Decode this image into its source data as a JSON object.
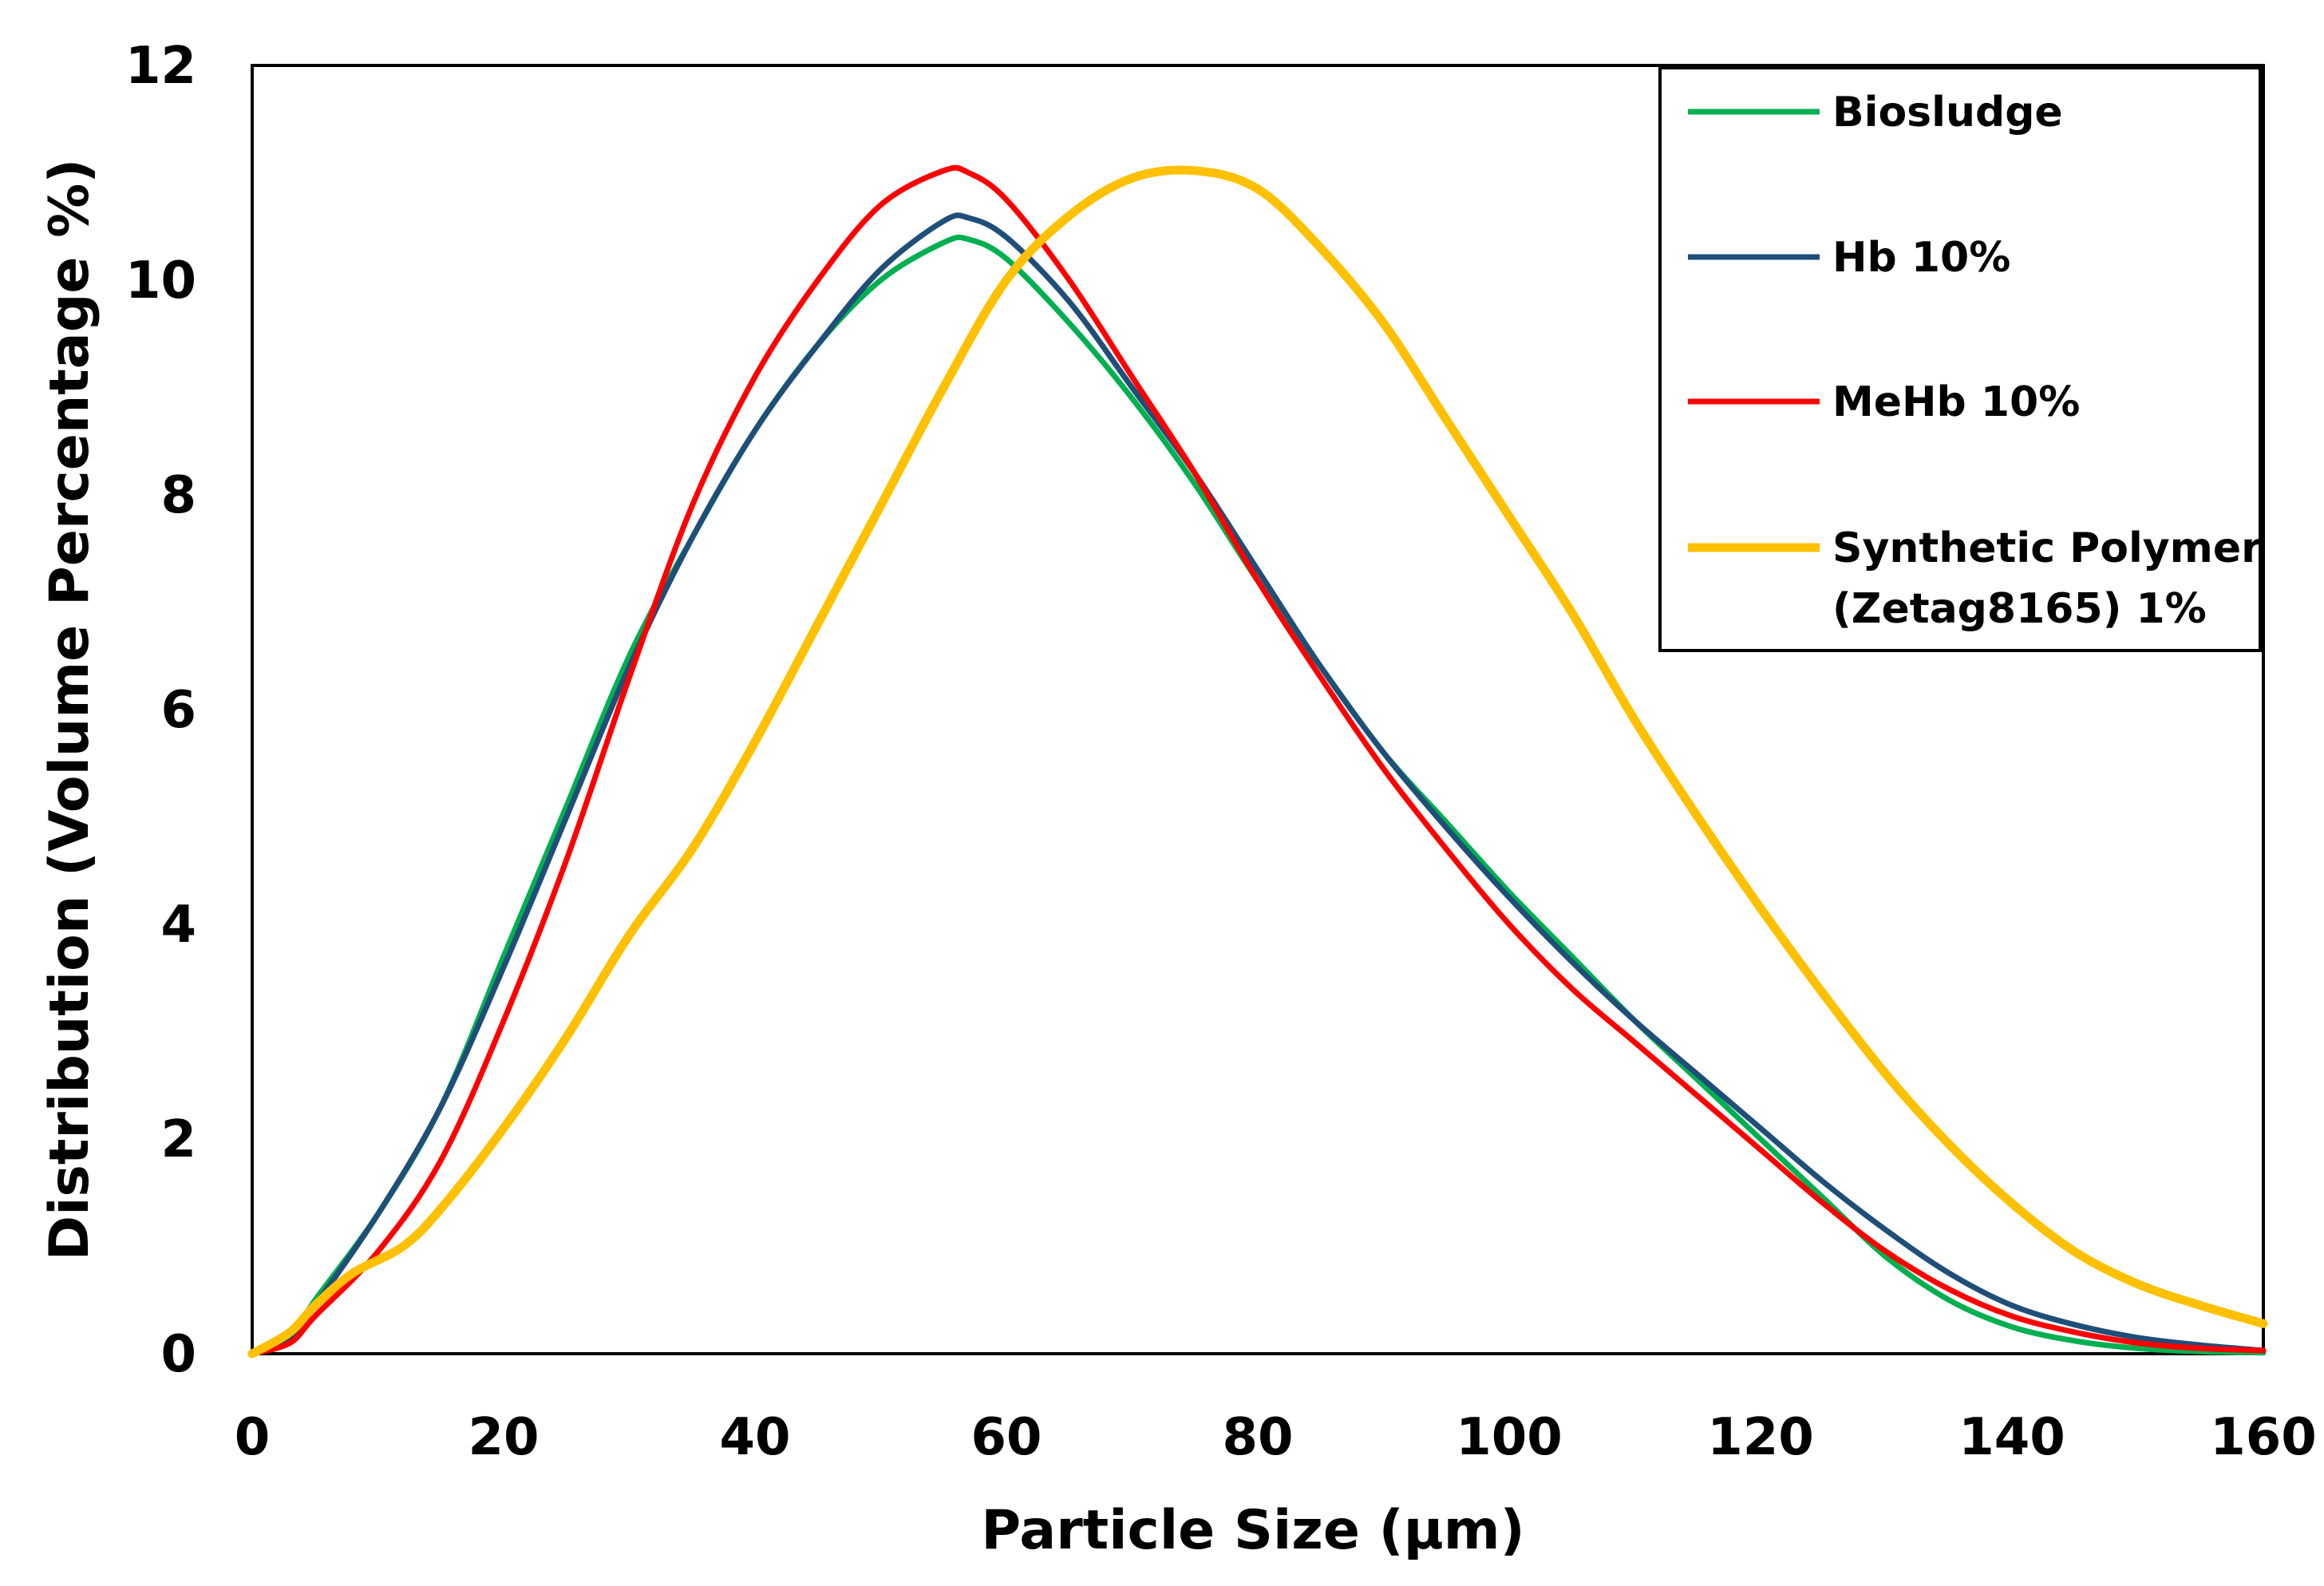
{
  "chart_data": {
    "type": "line",
    "title": "",
    "xlabel": "Particle Size (µm)",
    "ylabel": "Distribution (Volume Percentage %)",
    "xlim": [
      0,
      160
    ],
    "ylim": [
      0,
      12
    ],
    "xticks": [
      0,
      20,
      40,
      60,
      80,
      100,
      120,
      140,
      160
    ],
    "yticks": [
      0,
      2,
      4,
      6,
      8,
      10,
      12
    ],
    "xtick_labels": [
      "0",
      "20",
      "40",
      "60",
      "80",
      "100",
      "120",
      "140",
      "160"
    ],
    "ytick_labels": [
      "0",
      "2",
      "4",
      "6",
      "8",
      "10",
      "12"
    ],
    "grid": false,
    "legend_position": "top-right",
    "series": [
      {
        "name": "Biosludge",
        "color": "#00B050",
        "x": [
          0,
          3,
          5,
          10,
          15,
          20,
          25,
          30,
          35,
          40,
          45,
          50,
          55,
          57,
          60,
          65,
          70,
          75,
          80,
          85,
          90,
          95,
          100,
          105,
          110,
          115,
          120,
          125,
          130,
          135,
          140,
          145,
          150,
          155,
          160
        ],
        "y": [
          0,
          0.15,
          0.5,
          1.3,
          2.3,
          3.7,
          5.1,
          6.5,
          7.6,
          8.6,
          9.4,
          10.0,
          10.35,
          10.38,
          10.2,
          9.6,
          8.9,
          8.1,
          7.2,
          6.4,
          5.6,
          4.95,
          4.3,
          3.7,
          3.1,
          2.55,
          2.0,
          1.45,
          0.9,
          0.5,
          0.25,
          0.12,
          0.05,
          0.02,
          0.01
        ]
      },
      {
        "name": "Hb 10%",
        "color": "#1F4E79",
        "x": [
          0,
          3,
          5,
          10,
          15,
          20,
          25,
          30,
          35,
          40,
          45,
          50,
          55,
          57,
          60,
          65,
          70,
          75,
          80,
          85,
          90,
          95,
          100,
          105,
          110,
          115,
          120,
          125,
          130,
          135,
          140,
          145,
          150,
          155,
          160
        ],
        "y": [
          0,
          0.15,
          0.45,
          1.3,
          2.3,
          3.6,
          5.0,
          6.4,
          7.6,
          8.6,
          9.4,
          10.1,
          10.55,
          10.58,
          10.4,
          9.8,
          9.0,
          8.2,
          7.3,
          6.4,
          5.6,
          4.9,
          4.25,
          3.65,
          3.1,
          2.6,
          2.1,
          1.6,
          1.15,
          0.75,
          0.45,
          0.27,
          0.15,
          0.08,
          0.03
        ]
      },
      {
        "name": "MeHb 10%",
        "color": "#FF0000",
        "x": [
          0,
          3,
          5,
          10,
          15,
          20,
          25,
          30,
          35,
          40,
          45,
          50,
          55,
          57,
          60,
          65,
          70,
          75,
          80,
          85,
          90,
          95,
          100,
          105,
          110,
          115,
          120,
          125,
          130,
          135,
          140,
          145,
          150,
          155,
          160
        ],
        "y": [
          0,
          0.1,
          0.35,
          0.95,
          1.8,
          3.1,
          4.6,
          6.3,
          7.9,
          9.1,
          10.0,
          10.7,
          11.02,
          11.0,
          10.75,
          10.0,
          9.1,
          8.2,
          7.2,
          6.3,
          5.45,
          4.7,
          4.0,
          3.4,
          2.9,
          2.4,
          1.9,
          1.4,
          0.95,
          0.6,
          0.35,
          0.2,
          0.1,
          0.05,
          0.03
        ]
      },
      {
        "name": "Synthetic Polymer (Zetag8165) 1%",
        "legend_lines": [
          "Synthetic Polymer",
          "(Zetag8165) 1%"
        ],
        "color": "#FFC000",
        "x": [
          0,
          3,
          5,
          8,
          12,
          15,
          20,
          25,
          30,
          35,
          40,
          45,
          50,
          55,
          60,
          65,
          70,
          75,
          80,
          85,
          90,
          95,
          100,
          105,
          110,
          115,
          120,
          125,
          130,
          135,
          140,
          145,
          150,
          155,
          160
        ],
        "y": [
          0,
          0.2,
          0.45,
          0.75,
          1.0,
          1.35,
          2.1,
          2.95,
          3.9,
          4.7,
          5.7,
          6.8,
          7.9,
          9.0,
          10.0,
          10.6,
          10.95,
          11.02,
          10.85,
          10.3,
          9.6,
          8.7,
          7.8,
          6.9,
          5.9,
          5.0,
          4.15,
          3.35,
          2.6,
          1.95,
          1.4,
          0.95,
          0.65,
          0.45,
          0.28
        ]
      }
    ]
  }
}
